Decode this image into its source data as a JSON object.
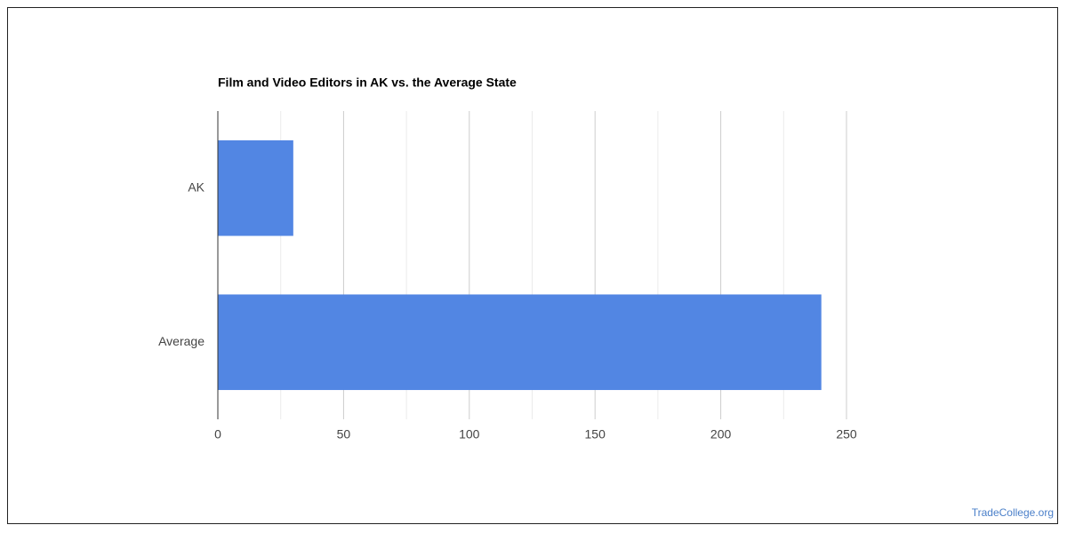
{
  "chart_data": {
    "type": "bar",
    "orientation": "horizontal",
    "title": "Film and Video Editors in AK vs. the Average State",
    "categories": [
      "AK",
      "Average"
    ],
    "values": [
      30,
      240
    ],
    "color": "#5286e3",
    "xlim": [
      0,
      250
    ],
    "xticks": [
      0,
      50,
      100,
      150,
      200,
      250
    ],
    "minor_xticks": [
      25,
      75,
      125,
      175,
      225
    ],
    "grid": true,
    "source": "TradeCollege.org"
  }
}
